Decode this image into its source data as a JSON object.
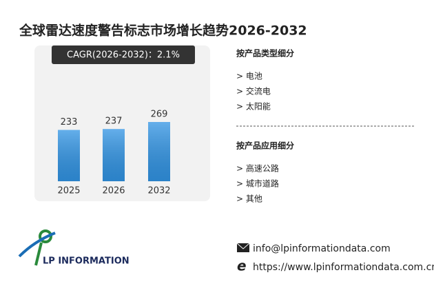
{
  "title": "全球雷达速度警告标志市场增长趋势2026-2032",
  "chart_data": {
    "type": "bar",
    "subtitle": "CAGR(2026-2032)：2.1%",
    "categories": [
      "2025",
      "2026",
      "2032"
    ],
    "values": [
      233,
      237,
      269
    ],
    "color": "#3194e4"
  },
  "segments": [
    {
      "heading": "按产品类型细分",
      "items": [
        "> 电池",
        "> 交流电",
        "> 太阳能"
      ]
    },
    {
      "heading": "按产品应用细分",
      "items": [
        "> 高速公路",
        "> 城市道路",
        "> 其他"
      ]
    }
  ],
  "logo": {
    "text": "LP INFORMATION"
  },
  "contact": {
    "email": "info@lpinformationdata.com",
    "website": "https://www.lpinformationdata.com.cn"
  }
}
